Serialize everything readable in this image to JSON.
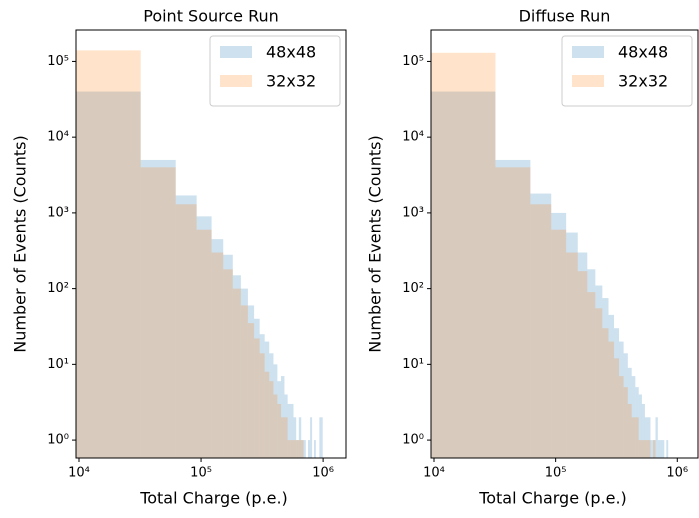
{
  "chart_data": [
    {
      "type": "histogram",
      "title": "Point Source Run",
      "x_label": "Total Charge (p.e.)",
      "y_label": "Number of Events (Counts)",
      "x_log": true,
      "y_log": true,
      "legend": "upper right",
      "xlim": [
        9450,
        1540000
      ],
      "ylim": [
        0.58,
        260000
      ],
      "xticks": [
        {
          "value": 10000,
          "label": "10⁴"
        },
        {
          "value": 100000,
          "label": "10⁵"
        },
        {
          "value": 1000000,
          "label": "10⁶"
        }
      ],
      "yticks": [
        {
          "value": 1,
          "label": "10⁰"
        },
        {
          "value": 10,
          "label": "10¹"
        },
        {
          "value": 100,
          "label": "10²"
        },
        {
          "value": 1000,
          "label": "10³"
        },
        {
          "value": 10000,
          "label": "10⁴"
        },
        {
          "value": 100000,
          "label": "10⁵"
        }
      ],
      "bins": [
        2000,
        32000,
        62000,
        92000,
        122000,
        152000,
        182000,
        212000,
        242000,
        272000,
        302000,
        332000,
        362000,
        392000,
        422000,
        452000,
        482000,
        512000,
        542000,
        572000,
        602000,
        632000,
        662000,
        692000,
        722000,
        752000,
        782000,
        812000,
        842000,
        872000,
        902000,
        932000,
        962000,
        992000
      ],
      "series": [
        {
          "name": "48x48",
          "color": "#1f77b4",
          "values": [
            40000,
            5000,
            1700,
            900,
            450,
            280,
            150,
            100,
            60,
            40,
            25,
            20,
            14,
            10,
            6,
            7,
            4,
            3,
            3,
            2,
            1,
            2,
            1,
            1,
            0,
            1,
            2,
            0,
            1,
            0,
            0,
            2,
            2
          ]
        },
        {
          "name": "32x32",
          "color": "#ff7f0e",
          "values": [
            140000,
            4000,
            1300,
            600,
            300,
            180,
            100,
            60,
            35,
            22,
            14,
            8,
            6,
            4,
            3,
            2,
            2,
            1,
            1,
            1,
            1,
            1,
            1,
            0,
            0,
            0,
            0,
            0,
            0,
            0,
            0,
            0,
            0
          ]
        }
      ]
    },
    {
      "type": "histogram",
      "title": "Diffuse Run",
      "x_label": "Total Charge (p.e.)",
      "y_label": "Number of Events (Counts)",
      "x_log": true,
      "y_log": true,
      "legend": "upper right",
      "xlim": [
        9450,
        1480000
      ],
      "ylim": [
        0.58,
        260000
      ],
      "xticks": [
        {
          "value": 10000,
          "label": "10⁴"
        },
        {
          "value": 100000,
          "label": "10⁵"
        },
        {
          "value": 1000000,
          "label": "10⁶"
        }
      ],
      "yticks": [
        {
          "value": 1,
          "label": "10⁰"
        },
        {
          "value": 10,
          "label": "10¹"
        },
        {
          "value": 100,
          "label": "10²"
        },
        {
          "value": 1000,
          "label": "10³"
        },
        {
          "value": 10000,
          "label": "10⁴"
        },
        {
          "value": 100000,
          "label": "10⁵"
        }
      ],
      "bins": [
        2000,
        32000,
        62000,
        92000,
        122000,
        152000,
        182000,
        212000,
        242000,
        272000,
        302000,
        332000,
        362000,
        392000,
        422000,
        452000,
        482000,
        512000,
        542000,
        572000,
        602000,
        632000,
        662000,
        692000,
        722000,
        752000,
        782000,
        812000,
        842000,
        872000,
        902000,
        932000,
        962000,
        992000
      ],
      "series": [
        {
          "name": "48x48",
          "color": "#1f77b4",
          "values": [
            40000,
            5000,
            1800,
            1000,
            550,
            300,
            180,
            110,
            75,
            45,
            30,
            20,
            14,
            9,
            7,
            5,
            4,
            3,
            2,
            2,
            1,
            1,
            2,
            1,
            1,
            1,
            0,
            1,
            0,
            0,
            0,
            0,
            0
          ]
        },
        {
          "name": "32x32",
          "color": "#ff7f0e",
          "values": [
            130000,
            4000,
            1300,
            600,
            300,
            170,
            90,
            55,
            30,
            20,
            12,
            7,
            5,
            3,
            2,
            2,
            1,
            1,
            1,
            1,
            0,
            1,
            0,
            0,
            0,
            0,
            0,
            0,
            0,
            0,
            0,
            0,
            0
          ]
        }
      ]
    }
  ]
}
